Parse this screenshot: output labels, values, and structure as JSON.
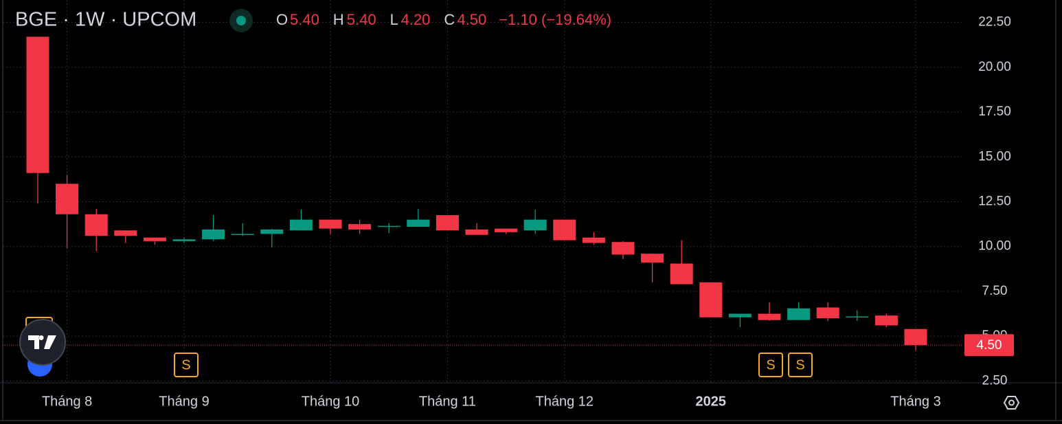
{
  "chart_data": {
    "type": "candlestick",
    "title": "BGE · 1W · UPCOM",
    "ohlc_labels": [
      {
        "key": "O",
        "value": "5.40"
      },
      {
        "key": "H",
        "value": "5.40"
      },
      {
        "key": "L",
        "value": "4.20"
      },
      {
        "key": "C",
        "value": "4.50"
      }
    ],
    "change": "−1.10 (−19.64%)",
    "categories": [
      null,
      "Tháng 8",
      null,
      null,
      null,
      "Tháng 9",
      null,
      null,
      null,
      null,
      "Tháng 10",
      null,
      null,
      null,
      "Tháng 11",
      null,
      null,
      null,
      "Tháng 12",
      null,
      null,
      null,
      null,
      "2025",
      null,
      null,
      null,
      null,
      null,
      null,
      "Tháng 3"
    ],
    "open": [
      21.7,
      13.5,
      11.8,
      10.9,
      10.5,
      10.3,
      10.4,
      10.65,
      10.7,
      10.9,
      11.5,
      11.25,
      11.1,
      11.1,
      11.75,
      10.95,
      11.0,
      10.9,
      11.5,
      10.5,
      10.25,
      9.6,
      9.05,
      8.0,
      6.05,
      6.25,
      5.9,
      6.6,
      6.05,
      6.15,
      5.4
    ],
    "high": [
      21.7,
      14.0,
      12.1,
      10.9,
      10.5,
      10.5,
      11.75,
      11.3,
      11.0,
      12.05,
      11.5,
      11.5,
      11.3,
      12.1,
      11.75,
      11.3,
      11.0,
      12.05,
      11.5,
      10.8,
      10.3,
      9.6,
      10.35,
      8.0,
      6.25,
      6.9,
      6.9,
      6.9,
      6.45,
      6.25,
      5.4
    ],
    "low": [
      12.4,
      9.9,
      9.75,
      10.2,
      10.1,
      10.2,
      10.3,
      10.6,
      9.95,
      10.9,
      10.7,
      10.7,
      10.75,
      11.1,
      10.9,
      10.65,
      10.7,
      10.7,
      10.35,
      10.1,
      9.3,
      8.0,
      7.9,
      6.05,
      5.5,
      5.85,
      5.9,
      5.85,
      5.85,
      5.5,
      4.2
    ],
    "close": [
      14.1,
      11.8,
      10.6,
      10.6,
      10.3,
      10.4,
      10.95,
      10.7,
      10.95,
      11.5,
      11.0,
      10.95,
      11.15,
      11.5,
      10.9,
      10.65,
      10.8,
      11.5,
      10.35,
      10.2,
      9.55,
      9.1,
      7.9,
      6.05,
      6.25,
      5.9,
      6.55,
      6.0,
      6.1,
      5.6,
      4.5
    ],
    "up_color": "#089981",
    "down_color": "#f23645",
    "last_price_label": "4.50",
    "markers": [
      "S",
      "S",
      "S"
    ],
    "ylim": [
      2.4,
      23.75
    ],
    "yticks": [
      {
        "value": 2.5,
        "label": "2.50"
      },
      {
        "value": 5,
        "label": "5.00"
      },
      {
        "value": 7.5,
        "label": "7.50"
      },
      {
        "value": 10,
        "label": "10.00"
      },
      {
        "value": 12.5,
        "label": "12.50"
      },
      {
        "value": 15,
        "label": "15.00"
      },
      {
        "value": 17.5,
        "label": "17.50"
      },
      {
        "value": 20,
        "label": "20.00"
      },
      {
        "value": 22.5,
        "label": "22.50"
      }
    ],
    "grid": true
  }
}
